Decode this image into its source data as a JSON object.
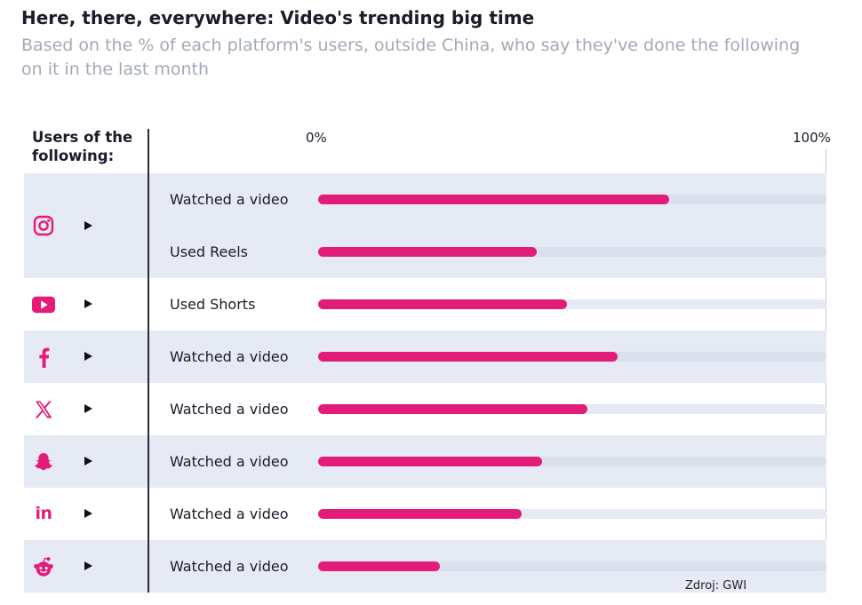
{
  "title": "Here, there, everywhere: Video's trending big time",
  "subtitle": "Based on the % of each platform's users, outside China, who say they've done the following on it in the last month",
  "column_header_line1": "Users of the",
  "column_header_line2": "following:",
  "axis": {
    "min_label": "0%",
    "max_label": "100%"
  },
  "source": "Zdroj: GWI",
  "colors": {
    "bar": "#e21d79",
    "track": "#e6eaf4",
    "icon": "#e21d79",
    "shaded_row": "#e6eaf4"
  },
  "chart_data": {
    "type": "bar",
    "orientation": "horizontal",
    "title": "Here, there, everywhere: Video's trending big time",
    "subtitle": "Based on the % of each platform's users, outside China, who say they've done the following on it in the last month",
    "xlim": [
      0,
      100
    ],
    "x_tick_labels": [
      "0%",
      "100%"
    ],
    "groups": [
      {
        "platform_icon": "instagram-icon",
        "shaded": true,
        "rows": [
          {
            "label": "Watched a video",
            "value": 69
          },
          {
            "label": "Used Reels",
            "value": 43
          }
        ]
      },
      {
        "platform_icon": "youtube-icon",
        "shaded": false,
        "rows": [
          {
            "label": "Used Shorts",
            "value": 49
          }
        ]
      },
      {
        "platform_icon": "facebook-icon",
        "shaded": true,
        "rows": [
          {
            "label": "Watched a video",
            "value": 59
          }
        ]
      },
      {
        "platform_icon": "x-icon",
        "shaded": false,
        "rows": [
          {
            "label": "Watched a video",
            "value": 53
          }
        ]
      },
      {
        "platform_icon": "snapchat-icon",
        "shaded": true,
        "rows": [
          {
            "label": "Watched a video",
            "value": 44
          }
        ]
      },
      {
        "platform_icon": "linkedin-icon",
        "shaded": false,
        "rows": [
          {
            "label": "Watched a video",
            "value": 40
          }
        ]
      },
      {
        "platform_icon": "reddit-icon",
        "shaded": true,
        "rows": [
          {
            "label": "Watched a video",
            "value": 24
          }
        ]
      }
    ]
  }
}
